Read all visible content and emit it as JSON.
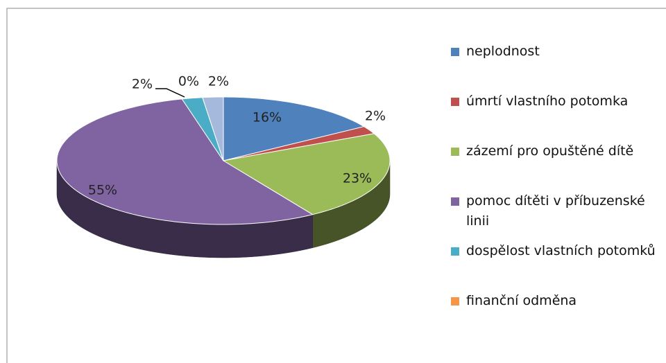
{
  "chart_data": {
    "type": "pie",
    "categories": [
      "neplodnost",
      "úmrtí vlastního potomka",
      "zázemí pro opuštěné dítě",
      "pomoc dítěti v příbuzenské linii",
      "dospělost vlastních potomků",
      "finanční odměna",
      null
    ],
    "values": [
      16,
      2,
      23,
      55,
      2,
      0,
      2
    ],
    "value_labels": [
      "16%",
      "2%",
      "23%",
      "55%",
      "2%",
      "0%",
      "2%"
    ],
    "colors": [
      "#4f81bd",
      "#c0504d",
      "#9bbb59",
      "#8064a2",
      "#4bacc6",
      "#f79646",
      "#a5b9dc"
    ],
    "legend": "right"
  }
}
